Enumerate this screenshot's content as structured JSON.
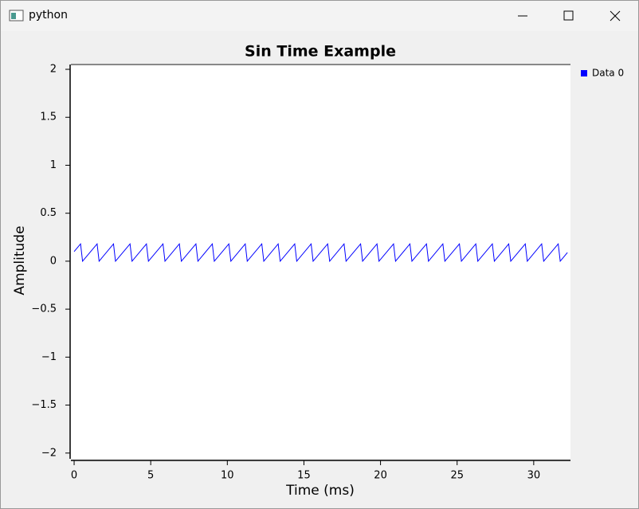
{
  "window": {
    "title": "python"
  },
  "chart_data": {
    "type": "line",
    "title": "Sin Time Example",
    "xlabel": "Time (ms)",
    "ylabel": "Amplitude",
    "xlim": [
      -0.21,
      32.4
    ],
    "ylim": [
      -2.06,
      2.05
    ],
    "xticks": [
      0,
      5,
      10,
      15,
      20,
      25,
      30
    ],
    "yticks": [
      {
        "value": -2,
        "label": "−2"
      },
      {
        "value": -1.5,
        "label": "−1.5"
      },
      {
        "value": -1,
        "label": "−1"
      },
      {
        "value": -0.5,
        "label": "−0.5"
      },
      0,
      0.5,
      1,
      1.5,
      2
    ],
    "legend": "upper right outside",
    "series": [
      {
        "name": "Data 0",
        "color": "#0000ff",
        "x": [
          0,
          0.42,
          0.55,
          1.5,
          1.63,
          2.57,
          2.7,
          3.65,
          3.78,
          4.72,
          4.85,
          5.8,
          5.93,
          6.87,
          7.0,
          7.95,
          8.08,
          9.02,
          9.15,
          10.1,
          10.23,
          11.17,
          11.3,
          12.25,
          12.38,
          13.32,
          13.45,
          14.4,
          14.53,
          15.47,
          15.6,
          16.55,
          16.68,
          17.62,
          17.75,
          18.7,
          18.83,
          19.77,
          19.9,
          20.85,
          20.98,
          21.92,
          22.05,
          23.0,
          23.13,
          24.07,
          24.2,
          25.15,
          25.28,
          26.22,
          26.35,
          27.3,
          27.43,
          28.37,
          28.5,
          29.45,
          29.58,
          30.52,
          30.65,
          31.6,
          31.73,
          32.2
        ],
        "values": [
          0.1,
          0.18,
          0,
          0.18,
          0,
          0.18,
          0,
          0.18,
          0,
          0.18,
          0,
          0.18,
          0,
          0.18,
          0,
          0.18,
          0,
          0.18,
          0,
          0.18,
          0,
          0.18,
          0,
          0.18,
          0,
          0.18,
          0,
          0.18,
          0,
          0.18,
          0,
          0.18,
          0,
          0.18,
          0,
          0.18,
          0,
          0.18,
          0,
          0.18,
          0,
          0.18,
          0,
          0.18,
          0,
          0.18,
          0,
          0.18,
          0,
          0.18,
          0,
          0.18,
          0,
          0.18,
          0,
          0.18,
          0,
          0.18,
          0,
          0.18,
          0,
          0.09
        ]
      }
    ]
  }
}
